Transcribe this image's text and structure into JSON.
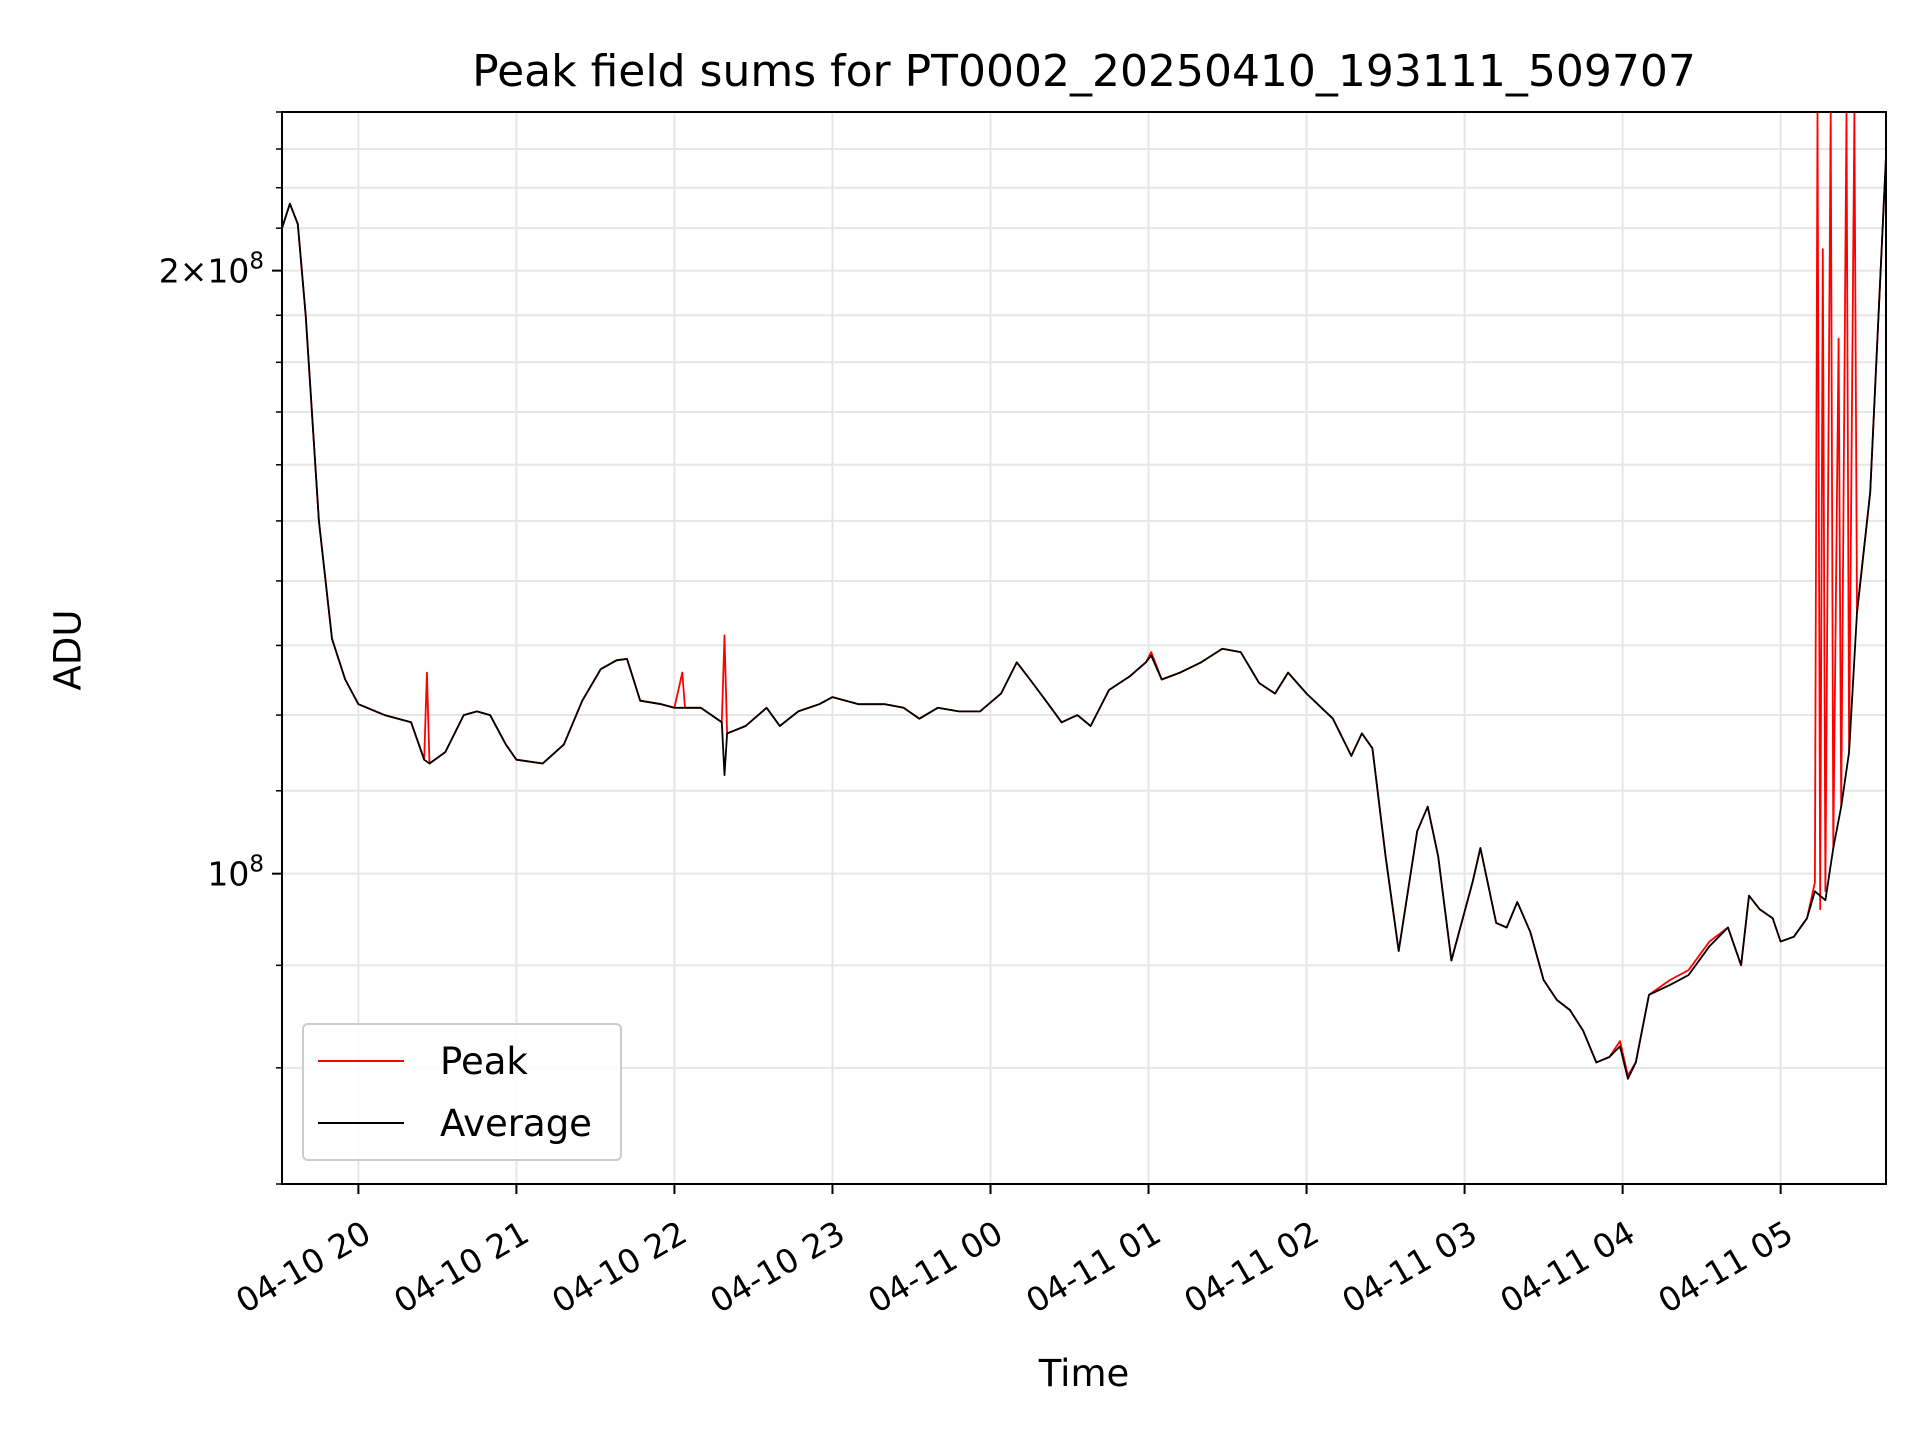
{
  "chart_data": {
    "type": "line",
    "title": "Peak field sums for PT0002_20250410_193111_509707",
    "xlabel": "Time",
    "ylabel": "ADU",
    "x_axis_type": "time",
    "xlim": [
      "2025-04-10 19:31",
      "2025-04-11 05:40"
    ],
    "xticks": [
      "04-10 20",
      "04-10 21",
      "04-10 22",
      "04-10 23",
      "04-11 00",
      "04-11 01",
      "04-11 02",
      "04-11 03",
      "04-11 04",
      "04-11 05"
    ],
    "y_scale": "log",
    "ylim": [
      70000000,
      240000000
    ],
    "yticks": [
      {
        "value": 100000000,
        "label": "10^8"
      },
      {
        "value": 200000000,
        "label": "2×10^8"
      }
    ],
    "grid": true,
    "legend_position": "lower-left",
    "series": [
      {
        "name": "Peak",
        "color": "#ff0000",
        "points": [
          [
            "2025-04-10 19:31",
            210000000
          ],
          [
            "2025-04-10 19:34",
            216000000
          ],
          [
            "2025-04-10 19:37",
            211000000
          ],
          [
            "2025-04-10 19:40",
            190000000
          ],
          [
            "2025-04-10 19:45",
            150000000
          ],
          [
            "2025-04-10 19:50",
            131000000
          ],
          [
            "2025-04-10 19:55",
            125000000
          ],
          [
            "2025-04-10 20:00",
            121500000
          ],
          [
            "2025-04-10 20:10",
            120000000
          ],
          [
            "2025-04-10 20:20",
            119000000
          ],
          [
            "2025-04-10 20:25",
            114000000
          ],
          [
            "2025-04-10 20:26",
            126000000
          ],
          [
            "2025-04-10 20:27",
            113500000
          ],
          [
            "2025-04-10 20:33",
            115000000
          ],
          [
            "2025-04-10 20:40",
            120000000
          ],
          [
            "2025-04-10 20:45",
            120500000
          ],
          [
            "2025-04-10 20:50",
            120000000
          ],
          [
            "2025-04-10 20:56",
            116000000
          ],
          [
            "2025-04-10 21:00",
            114000000
          ],
          [
            "2025-04-10 21:10",
            113500000
          ],
          [
            "2025-04-10 21:18",
            116000000
          ],
          [
            "2025-04-10 21:25",
            122000000
          ],
          [
            "2025-04-10 21:32",
            126500000
          ],
          [
            "2025-04-10 21:38",
            127800000
          ],
          [
            "2025-04-10 21:42",
            128000000
          ],
          [
            "2025-04-10 21:47",
            122000000
          ],
          [
            "2025-04-10 21:55",
            121500000
          ],
          [
            "2025-04-10 22:00",
            121000000
          ],
          [
            "2025-04-10 22:03",
            126000000
          ],
          [
            "2025-04-10 22:04",
            121000000
          ],
          [
            "2025-04-10 22:10",
            121000000
          ],
          [
            "2025-04-10 22:18",
            119000000
          ],
          [
            "2025-04-10 22:19",
            131500000
          ],
          [
            "2025-04-10 22:20",
            117500000
          ],
          [
            "2025-04-10 22:27",
            118500000
          ],
          [
            "2025-04-10 22:35",
            121000000
          ],
          [
            "2025-04-10 22:40",
            118500000
          ],
          [
            "2025-04-10 22:47",
            120500000
          ],
          [
            "2025-04-10 22:55",
            121500000
          ],
          [
            "2025-04-10 23:00",
            122500000
          ],
          [
            "2025-04-10 23:10",
            121500000
          ],
          [
            "2025-04-10 23:20",
            121500000
          ],
          [
            "2025-04-10 23:27",
            121000000
          ],
          [
            "2025-04-10 23:33",
            119500000
          ],
          [
            "2025-04-10 23:40",
            121000000
          ],
          [
            "2025-04-10 23:48",
            120500000
          ],
          [
            "2025-04-10 23:56",
            120500000
          ],
          [
            "2025-04-11 00:04",
            123000000
          ],
          [
            "2025-04-11 00:10",
            127500000
          ],
          [
            "2025-04-11 00:15",
            125000000
          ],
          [
            "2025-04-11 00:22",
            121500000
          ],
          [
            "2025-04-11 00:27",
            119000000
          ],
          [
            "2025-04-11 00:33",
            120000000
          ],
          [
            "2025-04-11 00:38",
            118500000
          ],
          [
            "2025-04-11 00:45",
            123500000
          ],
          [
            "2025-04-11 00:53",
            125500000
          ],
          [
            "2025-04-11 00:59",
            127500000
          ],
          [
            "2025-04-11 01:01",
            129000000
          ],
          [
            "2025-04-11 01:05",
            125000000
          ],
          [
            "2025-04-11 01:12",
            126000000
          ],
          [
            "2025-04-11 01:20",
            127500000
          ],
          [
            "2025-04-11 01:28",
            129500000
          ],
          [
            "2025-04-11 01:35",
            129000000
          ],
          [
            "2025-04-11 01:42",
            124500000
          ],
          [
            "2025-04-11 01:48",
            123000000
          ],
          [
            "2025-04-11 01:53",
            126000000
          ],
          [
            "2025-04-11 02:00",
            123000000
          ],
          [
            "2025-04-11 02:10",
            119500000
          ],
          [
            "2025-04-11 02:17",
            114500000
          ],
          [
            "2025-04-11 02:21",
            117500000
          ],
          [
            "2025-04-11 02:25",
            115500000
          ],
          [
            "2025-04-11 02:30",
            102000000
          ],
          [
            "2025-04-11 02:35",
            91500000
          ],
          [
            "2025-04-11 02:42",
            105000000
          ],
          [
            "2025-04-11 02:46",
            108000000
          ],
          [
            "2025-04-11 02:50",
            102000000
          ],
          [
            "2025-04-11 02:55",
            90500000
          ],
          [
            "2025-04-11 03:03",
            99000000
          ],
          [
            "2025-04-11 03:06",
            103000000
          ],
          [
            "2025-04-11 03:12",
            94500000
          ],
          [
            "2025-04-11 03:16",
            94000000
          ],
          [
            "2025-04-11 03:20",
            96800000
          ],
          [
            "2025-04-11 03:25",
            93500000
          ],
          [
            "2025-04-11 03:30",
            88500000
          ],
          [
            "2025-04-11 03:35",
            86500000
          ],
          [
            "2025-04-11 03:40",
            85500000
          ],
          [
            "2025-04-11 03:45",
            83500000
          ],
          [
            "2025-04-11 03:50",
            80500000
          ],
          [
            "2025-04-11 03:55",
            81000000
          ],
          [
            "2025-04-11 03:59",
            82500000
          ],
          [
            "2025-04-11 04:02",
            79300000
          ],
          [
            "2025-04-11 04:05",
            80500000
          ],
          [
            "2025-04-11 04:10",
            87000000
          ],
          [
            "2025-04-11 04:18",
            88500000
          ],
          [
            "2025-04-11 04:25",
            89500000
          ],
          [
            "2025-04-11 04:33",
            92500000
          ],
          [
            "2025-04-11 04:40",
            94000000
          ],
          [
            "2025-04-11 04:45",
            90000000
          ],
          [
            "2025-04-11 04:48",
            97500000
          ],
          [
            "2025-04-11 04:52",
            96000000
          ],
          [
            "2025-04-11 04:57",
            95000000
          ],
          [
            "2025-04-11 05:00",
            92500000
          ],
          [
            "2025-04-11 05:05",
            93000000
          ],
          [
            "2025-04-11 05:10",
            95000000
          ],
          [
            "2025-04-11 05:13",
            99000000
          ],
          [
            "2025-04-11 05:14",
            240000000
          ],
          [
            "2025-04-11 05:15",
            96000000
          ],
          [
            "2025-04-11 05:16",
            205000000
          ],
          [
            "2025-04-11 05:17",
            98000000
          ],
          [
            "2025-04-11 05:19",
            240000000
          ],
          [
            "2025-04-11 05:20",
            103000000
          ],
          [
            "2025-04-11 05:22",
            185000000
          ],
          [
            "2025-04-11 05:23",
            108000000
          ],
          [
            "2025-04-11 05:25",
            240000000
          ],
          [
            "2025-04-11 05:26",
            115000000
          ],
          [
            "2025-04-11 05:28",
            240000000
          ],
          [
            "2025-04-11 05:29",
            135000000
          ],
          [
            "2025-04-11 05:34",
            155000000
          ],
          [
            "2025-04-11 05:40",
            228000000
          ]
        ]
      },
      {
        "name": "Average",
        "color": "#000000",
        "points": [
          [
            "2025-04-10 19:31",
            210000000
          ],
          [
            "2025-04-10 19:34",
            216000000
          ],
          [
            "2025-04-10 19:37",
            211000000
          ],
          [
            "2025-04-10 19:40",
            190000000
          ],
          [
            "2025-04-10 19:45",
            150000000
          ],
          [
            "2025-04-10 19:50",
            131000000
          ],
          [
            "2025-04-10 19:55",
            125000000
          ],
          [
            "2025-04-10 20:00",
            121500000
          ],
          [
            "2025-04-10 20:10",
            120000000
          ],
          [
            "2025-04-10 20:20",
            119000000
          ],
          [
            "2025-04-10 20:25",
            114000000
          ],
          [
            "2025-04-10 20:27",
            113500000
          ],
          [
            "2025-04-10 20:33",
            115000000
          ],
          [
            "2025-04-10 20:40",
            120000000
          ],
          [
            "2025-04-10 20:45",
            120500000
          ],
          [
            "2025-04-10 20:50",
            120000000
          ],
          [
            "2025-04-10 20:56",
            116000000
          ],
          [
            "2025-04-10 21:00",
            114000000
          ],
          [
            "2025-04-10 21:10",
            113500000
          ],
          [
            "2025-04-10 21:18",
            116000000
          ],
          [
            "2025-04-10 21:25",
            122000000
          ],
          [
            "2025-04-10 21:32",
            126500000
          ],
          [
            "2025-04-10 21:38",
            127800000
          ],
          [
            "2025-04-10 21:42",
            128000000
          ],
          [
            "2025-04-10 21:47",
            122000000
          ],
          [
            "2025-04-10 21:55",
            121500000
          ],
          [
            "2025-04-10 22:00",
            121000000
          ],
          [
            "2025-04-10 22:10",
            121000000
          ],
          [
            "2025-04-10 22:18",
            119000000
          ],
          [
            "2025-04-10 22:19",
            112000000
          ],
          [
            "2025-04-10 22:20",
            117500000
          ],
          [
            "2025-04-10 22:27",
            118500000
          ],
          [
            "2025-04-10 22:35",
            121000000
          ],
          [
            "2025-04-10 22:40",
            118500000
          ],
          [
            "2025-04-10 22:47",
            120500000
          ],
          [
            "2025-04-10 22:55",
            121500000
          ],
          [
            "2025-04-10 23:00",
            122500000
          ],
          [
            "2025-04-10 23:10",
            121500000
          ],
          [
            "2025-04-10 23:20",
            121500000
          ],
          [
            "2025-04-10 23:27",
            121000000
          ],
          [
            "2025-04-10 23:33",
            119500000
          ],
          [
            "2025-04-10 23:40",
            121000000
          ],
          [
            "2025-04-10 23:48",
            120500000
          ],
          [
            "2025-04-10 23:56",
            120500000
          ],
          [
            "2025-04-11 00:04",
            123000000
          ],
          [
            "2025-04-11 00:10",
            127500000
          ],
          [
            "2025-04-11 00:15",
            125000000
          ],
          [
            "2025-04-11 00:22",
            121500000
          ],
          [
            "2025-04-11 00:27",
            119000000
          ],
          [
            "2025-04-11 00:33",
            120000000
          ],
          [
            "2025-04-11 00:38",
            118500000
          ],
          [
            "2025-04-11 00:45",
            123500000
          ],
          [
            "2025-04-11 00:53",
            125500000
          ],
          [
            "2025-04-11 00:59",
            127500000
          ],
          [
            "2025-04-11 01:01",
            128500000
          ],
          [
            "2025-04-11 01:05",
            125000000
          ],
          [
            "2025-04-11 01:12",
            126000000
          ],
          [
            "2025-04-11 01:20",
            127500000
          ],
          [
            "2025-04-11 01:28",
            129500000
          ],
          [
            "2025-04-11 01:35",
            129000000
          ],
          [
            "2025-04-11 01:42",
            124500000
          ],
          [
            "2025-04-11 01:48",
            123000000
          ],
          [
            "2025-04-11 01:53",
            126000000
          ],
          [
            "2025-04-11 02:00",
            123000000
          ],
          [
            "2025-04-11 02:10",
            119500000
          ],
          [
            "2025-04-11 02:17",
            114500000
          ],
          [
            "2025-04-11 02:21",
            117500000
          ],
          [
            "2025-04-11 02:25",
            115500000
          ],
          [
            "2025-04-11 02:30",
            102000000
          ],
          [
            "2025-04-11 02:35",
            91500000
          ],
          [
            "2025-04-11 02:42",
            105000000
          ],
          [
            "2025-04-11 02:46",
            108000000
          ],
          [
            "2025-04-11 02:50",
            102000000
          ],
          [
            "2025-04-11 02:55",
            90500000
          ],
          [
            "2025-04-11 03:03",
            99000000
          ],
          [
            "2025-04-11 03:06",
            103000000
          ],
          [
            "2025-04-11 03:12",
            94500000
          ],
          [
            "2025-04-11 03:16",
            94000000
          ],
          [
            "2025-04-11 03:20",
            96800000
          ],
          [
            "2025-04-11 03:25",
            93500000
          ],
          [
            "2025-04-11 03:30",
            88500000
          ],
          [
            "2025-04-11 03:35",
            86500000
          ],
          [
            "2025-04-11 03:40",
            85500000
          ],
          [
            "2025-04-11 03:45",
            83500000
          ],
          [
            "2025-04-11 03:50",
            80500000
          ],
          [
            "2025-04-11 03:55",
            81000000
          ],
          [
            "2025-04-11 03:59",
            82000000
          ],
          [
            "2025-04-11 04:02",
            79000000
          ],
          [
            "2025-04-11 04:05",
            80500000
          ],
          [
            "2025-04-11 04:10",
            87000000
          ],
          [
            "2025-04-11 04:18",
            88000000
          ],
          [
            "2025-04-11 04:25",
            89000000
          ],
          [
            "2025-04-11 04:33",
            92000000
          ],
          [
            "2025-04-11 04:40",
            94000000
          ],
          [
            "2025-04-11 04:45",
            90000000
          ],
          [
            "2025-04-11 04:48",
            97500000
          ],
          [
            "2025-04-11 04:52",
            96000000
          ],
          [
            "2025-04-11 04:57",
            95000000
          ],
          [
            "2025-04-11 05:00",
            92500000
          ],
          [
            "2025-04-11 05:05",
            93000000
          ],
          [
            "2025-04-11 05:10",
            95000000
          ],
          [
            "2025-04-11 05:13",
            98000000
          ],
          [
            "2025-04-11 05:17",
            97000000
          ],
          [
            "2025-04-11 05:20",
            103000000
          ],
          [
            "2025-04-11 05:23",
            108000000
          ],
          [
            "2025-04-11 05:26",
            115000000
          ],
          [
            "2025-04-11 05:29",
            135000000
          ],
          [
            "2025-04-11 05:34",
            155000000
          ],
          [
            "2025-04-11 05:40",
            228000000
          ]
        ]
      }
    ]
  }
}
